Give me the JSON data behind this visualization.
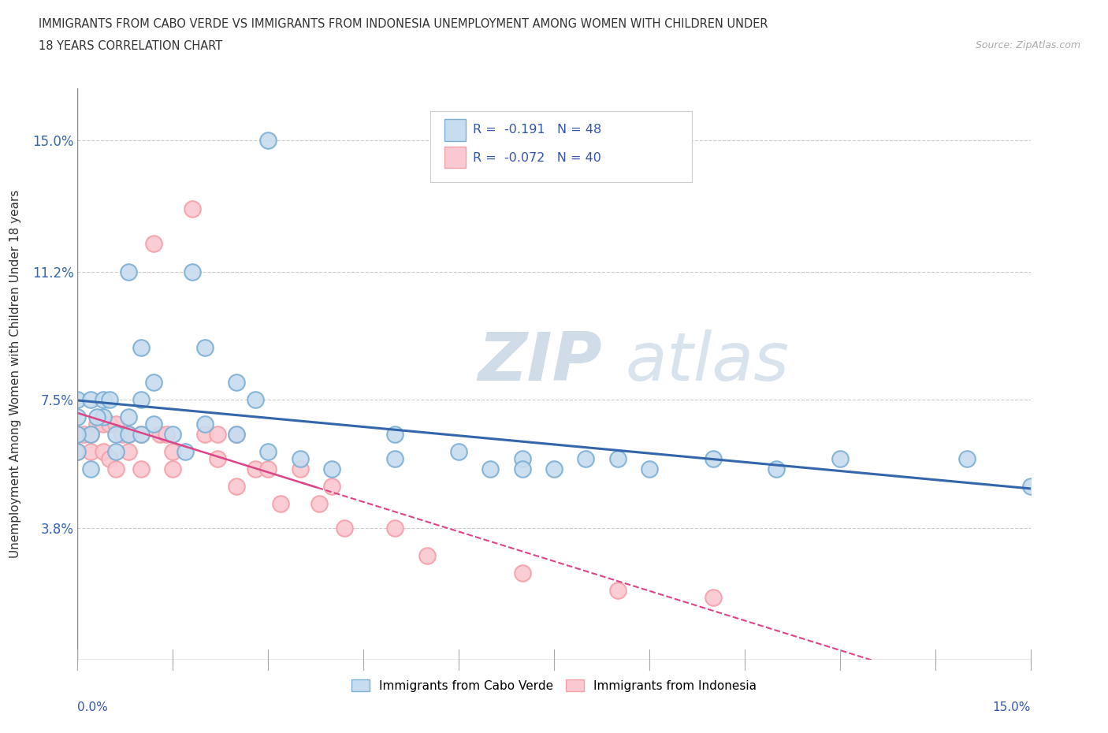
{
  "title_line1": "IMMIGRANTS FROM CABO VERDE VS IMMIGRANTS FROM INDONESIA UNEMPLOYMENT AMONG WOMEN WITH CHILDREN UNDER",
  "title_line2": "18 YEARS CORRELATION CHART",
  "source": "Source: ZipAtlas.com",
  "ylabel": "Unemployment Among Women with Children Under 18 years",
  "ytick_labels": [
    "15.0%",
    "11.2%",
    "7.5%",
    "3.8%"
  ],
  "ytick_values": [
    0.15,
    0.112,
    0.075,
    0.038
  ],
  "xmin": 0.0,
  "xmax": 0.15,
  "ymin": 0.0,
  "ymax": 0.165,
  "r1": -0.191,
  "n1": 48,
  "r2": -0.072,
  "n2": 40,
  "legend_label1": "Immigrants from Cabo Verde",
  "legend_label2": "Immigrants from Indonesia",
  "color1_edge": "#7bafd4",
  "color2_edge": "#f4a0a8",
  "color1_fill": "#c6dcef",
  "color2_fill": "#fac8d0",
  "trend_color1": "#3366aa",
  "trend_color2": "#dd4488",
  "watermark_zip": "ZIP",
  "watermark_atlas": "atlas",
  "cabo_verde_x": [
    0.03,
    0.018,
    0.02,
    0.008,
    0.01,
    0.012,
    0.025,
    0.028,
    0.0,
    0.002,
    0.0,
    0.002,
    0.004,
    0.004,
    0.0,
    0.0,
    0.002,
    0.005,
    0.003,
    0.006,
    0.006,
    0.008,
    0.008,
    0.01,
    0.01,
    0.012,
    0.015,
    0.017,
    0.02,
    0.025,
    0.03,
    0.035,
    0.04,
    0.05,
    0.05,
    0.06,
    0.065,
    0.07,
    0.07,
    0.075,
    0.08,
    0.085,
    0.09,
    0.1,
    0.11,
    0.12,
    0.14,
    0.15
  ],
  "cabo_verde_y": [
    0.15,
    0.112,
    0.09,
    0.112,
    0.09,
    0.08,
    0.08,
    0.075,
    0.075,
    0.075,
    0.07,
    0.065,
    0.075,
    0.07,
    0.065,
    0.06,
    0.055,
    0.075,
    0.07,
    0.065,
    0.06,
    0.07,
    0.065,
    0.075,
    0.065,
    0.068,
    0.065,
    0.06,
    0.068,
    0.065,
    0.06,
    0.058,
    0.055,
    0.065,
    0.058,
    0.06,
    0.055,
    0.058,
    0.055,
    0.055,
    0.058,
    0.058,
    0.055,
    0.058,
    0.055,
    0.058,
    0.058,
    0.05
  ],
  "indonesia_x": [
    0.0,
    0.0,
    0.001,
    0.002,
    0.002,
    0.003,
    0.004,
    0.004,
    0.005,
    0.005,
    0.006,
    0.006,
    0.007,
    0.008,
    0.008,
    0.01,
    0.01,
    0.012,
    0.013,
    0.014,
    0.015,
    0.015,
    0.018,
    0.02,
    0.022,
    0.022,
    0.025,
    0.025,
    0.028,
    0.03,
    0.032,
    0.035,
    0.038,
    0.04,
    0.042,
    0.05,
    0.055,
    0.07,
    0.085,
    0.1
  ],
  "indonesia_y": [
    0.065,
    0.06,
    0.065,
    0.065,
    0.06,
    0.068,
    0.068,
    0.06,
    0.068,
    0.058,
    0.068,
    0.055,
    0.065,
    0.065,
    0.06,
    0.065,
    0.055,
    0.12,
    0.065,
    0.065,
    0.06,
    0.055,
    0.13,
    0.065,
    0.065,
    0.058,
    0.065,
    0.05,
    0.055,
    0.055,
    0.045,
    0.055,
    0.045,
    0.05,
    0.038,
    0.038,
    0.03,
    0.025,
    0.02,
    0.018
  ]
}
